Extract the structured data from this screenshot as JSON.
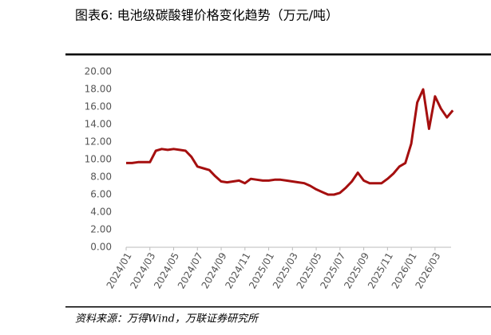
{
  "chart_data": {
    "type": "line",
    "title": "图表6:  电池级碳酸锂价格变化趋势（万元/吨）",
    "source": "资料来源：万得Wind，万联证券研究所",
    "categories": [
      "2024/01",
      null,
      null,
      null,
      "2024/03",
      null,
      null,
      null,
      "2024/05",
      null,
      null,
      null,
      "2024/07",
      null,
      null,
      null,
      "2024/09",
      null,
      null,
      null,
      "2024/11",
      null,
      null,
      null,
      "2025/01",
      null,
      null,
      null,
      "2025/03",
      null,
      null,
      null,
      "2025/05",
      null,
      null,
      null,
      "2025/07",
      null,
      null,
      null,
      "2025/09",
      null,
      null,
      null,
      "2025/11",
      null,
      null,
      null,
      "2026/01",
      null,
      null,
      null,
      "2026/03",
      null,
      null,
      null
    ],
    "values": [
      9.6,
      9.6,
      9.7,
      9.7,
      9.7,
      11.0,
      11.2,
      11.1,
      11.2,
      11.1,
      11.0,
      10.3,
      9.2,
      9.0,
      8.8,
      8.1,
      7.5,
      7.4,
      7.5,
      7.6,
      7.3,
      7.8,
      7.7,
      7.6,
      7.6,
      7.7,
      7.7,
      7.6,
      7.5,
      7.4,
      7.3,
      7.0,
      6.6,
      6.3,
      6.0,
      6.0,
      6.2,
      6.8,
      7.5,
      8.5,
      7.6,
      7.3,
      7.3,
      7.3,
      7.8,
      8.4,
      9.2,
      9.6,
      11.8,
      16.5,
      18.0,
      13.5,
      17.2,
      15.8,
      14.8,
      15.6
    ],
    "color": "#a50f0f",
    "ylim": [
      0,
      20
    ],
    "yticks": [
      {
        "value": 0,
        "label": "0.00"
      },
      {
        "value": 2,
        "label": "2.00"
      },
      {
        "value": 4,
        "label": "4.00"
      },
      {
        "value": 6,
        "label": "6.00"
      },
      {
        "value": 8,
        "label": "8.00"
      },
      {
        "value": 10,
        "label": "10.00"
      },
      {
        "value": 12,
        "label": "12.00"
      },
      {
        "value": 14,
        "label": "14.00"
      },
      {
        "value": 16,
        "label": "16.00"
      },
      {
        "value": 18,
        "label": "18.00"
      },
      {
        "value": 20,
        "label": "20.00"
      }
    ]
  }
}
